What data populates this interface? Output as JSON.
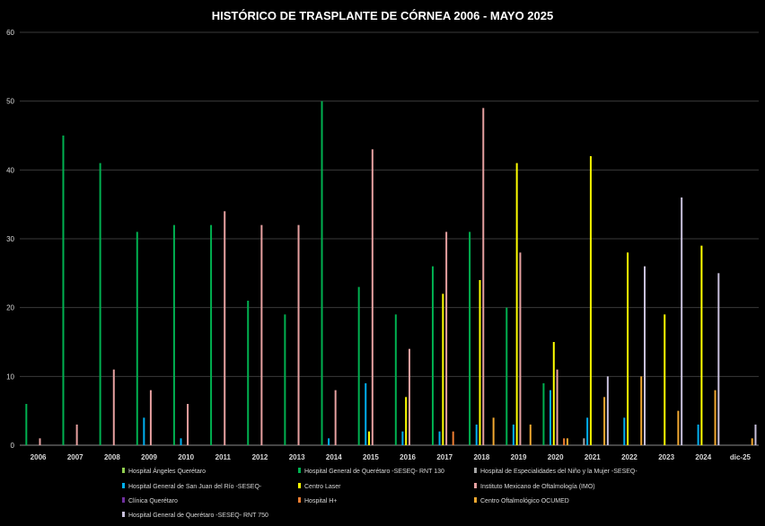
{
  "chart_data": {
    "type": "bar",
    "title": "HISTÓRICO DE TRASPLANTE DE CÓRNEA 2006 - MAYO 2025",
    "categories": [
      "2006",
      "2007",
      "2008",
      "2009",
      "2010",
      "2011",
      "2012",
      "2013",
      "2014",
      "2015",
      "2016",
      "2017",
      "2018",
      "2019",
      "2020",
      "2021",
      "2022",
      "2023",
      "2024",
      "dic-25"
    ],
    "ylim": [
      0,
      60
    ],
    "yticks": [
      "0",
      "10",
      "20",
      "30",
      "40",
      "50",
      "60"
    ],
    "grid": true,
    "legend_position": "bottom",
    "series": [
      {
        "name": "Hospital Ángeles Querétaro",
        "color": "#92d050",
        "values": [
          null,
          null,
          null,
          null,
          null,
          null,
          null,
          null,
          null,
          null,
          null,
          null,
          null,
          null,
          null,
          null,
          null,
          null,
          null,
          null
        ]
      },
      {
        "name": "Hospital General de Querétaro -SESEQ- RNT 130",
        "color": "#00b050",
        "values": [
          6,
          45,
          41,
          31,
          32,
          32,
          21,
          19,
          50,
          23,
          19,
          26,
          31,
          20,
          9,
          null,
          null,
          null,
          null,
          null
        ]
      },
      {
        "name": "Hospital de Especialidades del Niño y la Mujer -SESEQ-",
        "color": "#a6a6a6",
        "values": [
          null,
          null,
          null,
          null,
          null,
          null,
          null,
          null,
          null,
          null,
          null,
          null,
          null,
          null,
          null,
          1,
          null,
          null,
          null,
          null
        ]
      },
      {
        "name": "Hospital General de San Juan del Río -SESEQ-",
        "color": "#00b0f0",
        "values": [
          null,
          null,
          null,
          4,
          1,
          null,
          null,
          null,
          1,
          9,
          2,
          2,
          3,
          3,
          8,
          4,
          4,
          null,
          3,
          null
        ]
      },
      {
        "name": "Centro Laser",
        "color": "#ffff00",
        "values": [
          null,
          null,
          null,
          null,
          null,
          null,
          null,
          null,
          null,
          2,
          7,
          22,
          24,
          41,
          15,
          42,
          28,
          19,
          29,
          null
        ]
      },
      {
        "name": "Instituto Mexicano de Oftalmología (IMO)",
        "color": "#e6a0a0",
        "values": [
          1,
          3,
          11,
          8,
          6,
          34,
          32,
          32,
          8,
          43,
          14,
          31,
          49,
          28,
          11,
          null,
          null,
          null,
          null,
          null
        ]
      },
      {
        "name": "Clínica Querétaro",
        "color": "#7030a0",
        "values": [
          null,
          null,
          null,
          null,
          null,
          null,
          null,
          null,
          null,
          null,
          null,
          null,
          null,
          null,
          null,
          null,
          null,
          null,
          null,
          null
        ]
      },
      {
        "name": "Hospital H+",
        "color": "#ed7d31",
        "values": [
          null,
          null,
          null,
          null,
          null,
          null,
          null,
          null,
          null,
          null,
          null,
          2,
          null,
          null,
          1,
          null,
          null,
          null,
          null,
          null
        ]
      },
      {
        "name": "Centro Oftalmológico OCUMED",
        "color": "#f0a830",
        "values": [
          null,
          null,
          null,
          null,
          null,
          null,
          null,
          null,
          null,
          null,
          null,
          null,
          4,
          3,
          1,
          7,
          10,
          5,
          8,
          1
        ]
      },
      {
        "name": "Hospital General de Querétaro -SESEQ- RNT 750",
        "color": "#c8c0dc",
        "values": [
          null,
          null,
          null,
          null,
          null,
          null,
          null,
          null,
          null,
          null,
          null,
          null,
          null,
          null,
          null,
          10,
          26,
          36,
          25,
          3
        ]
      }
    ]
  }
}
